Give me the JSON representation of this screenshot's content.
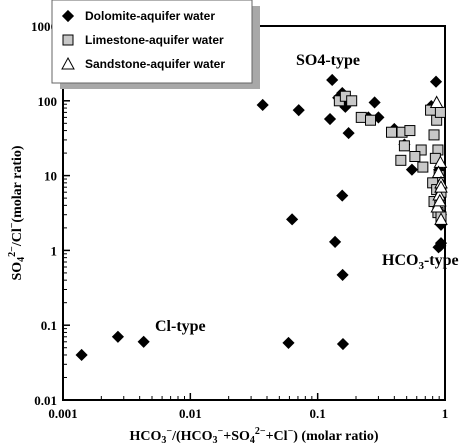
{
  "chart_data": {
    "type": "scatter",
    "x_scale": "log",
    "y_scale": "log",
    "xlim": [
      0.001,
      1
    ],
    "ylim": [
      0.01,
      1000
    ],
    "grid": false,
    "legend_position": "top-left",
    "xlabel_parts": [
      "HCO",
      "3",
      "−",
      "/(HCO",
      "3",
      "−",
      "+SO",
      "4",
      "2−",
      "+Cl",
      "−",
      ") (molar ratio)"
    ],
    "ylabel_parts": [
      "SO",
      "4",
      "2−",
      "/Cl",
      "−",
      "(molar ratio)"
    ],
    "x_tick_labels": [
      "0.001",
      "0.01",
      "0.1",
      "1"
    ],
    "y_tick_labels": [
      "0.01",
      "0.1",
      "1",
      "10",
      "100",
      "1000"
    ],
    "annotations": {
      "so4": {
        "text": "SO4-type"
      },
      "cl": {
        "text": "Cl-type"
      },
      "hco3": {
        "parts": [
          "HCO",
          "3",
          "-type"
        ]
      }
    },
    "series": [
      {
        "name": "Dolomite-aquifer water",
        "marker": "diamond",
        "color": "#000000",
        "points": [
          [
            0.0014,
            0.04
          ],
          [
            0.0027,
            0.07
          ],
          [
            0.0043,
            0.06
          ],
          [
            0.037,
            88
          ],
          [
            0.071,
            75
          ],
          [
            0.063,
            2.6
          ],
          [
            0.059,
            0.058
          ],
          [
            0.158,
            0.056
          ],
          [
            0.13,
            190
          ],
          [
            0.145,
            110
          ],
          [
            0.156,
            127
          ],
          [
            0.17,
            105
          ],
          [
            0.165,
            83
          ],
          [
            0.125,
            57
          ],
          [
            0.175,
            37
          ],
          [
            0.156,
            5.4
          ],
          [
            0.137,
            1.3
          ],
          [
            0.157,
            0.47
          ],
          [
            0.25,
            60
          ],
          [
            0.28,
            95
          ],
          [
            0.3,
            60
          ],
          [
            0.4,
            42
          ],
          [
            0.48,
            26
          ],
          [
            0.55,
            12
          ],
          [
            0.85,
            180
          ],
          [
            0.78,
            85
          ],
          [
            0.9,
            12
          ],
          [
            0.91,
            6
          ],
          [
            0.93,
            3
          ],
          [
            0.93,
            2.2
          ],
          [
            0.92,
            1.15
          ],
          [
            0.95,
            1.25
          ],
          [
            0.89,
            1.1
          ]
        ]
      },
      {
        "name": "Limestone-aquifer water",
        "marker": "square",
        "color": "#c8c8c8",
        "points": [
          [
            0.148,
            100
          ],
          [
            0.165,
            115
          ],
          [
            0.185,
            100
          ],
          [
            0.22,
            60
          ],
          [
            0.26,
            55
          ],
          [
            0.38,
            38
          ],
          [
            0.46,
            38
          ],
          [
            0.53,
            40
          ],
          [
            0.48,
            25
          ],
          [
            0.65,
            22
          ],
          [
            0.45,
            16
          ],
          [
            0.58,
            18
          ],
          [
            0.67,
            13
          ],
          [
            0.82,
            35
          ],
          [
            0.86,
            55
          ],
          [
            0.77,
            75
          ],
          [
            0.92,
            70
          ],
          [
            0.88,
            22
          ],
          [
            0.84,
            17
          ],
          [
            0.9,
            10
          ],
          [
            0.8,
            8
          ],
          [
            0.86,
            6.5
          ],
          [
            0.93,
            6
          ],
          [
            0.82,
            4.5
          ],
          [
            0.91,
            4
          ],
          [
            0.88,
            3.2
          ],
          [
            0.94,
            2.8
          ]
        ]
      },
      {
        "name": "Sandstone-aquifer water",
        "marker": "triangle",
        "color": "#ffffff",
        "points": [
          [
            0.86,
            95
          ],
          [
            0.92,
            15
          ],
          [
            0.89,
            11
          ],
          [
            0.95,
            8
          ],
          [
            0.9,
            5.5
          ],
          [
            0.87,
            3.8
          ],
          [
            0.96,
            2.6
          ],
          [
            0.93,
            7
          ],
          [
            0.91,
            4.6
          ]
        ]
      }
    ]
  }
}
